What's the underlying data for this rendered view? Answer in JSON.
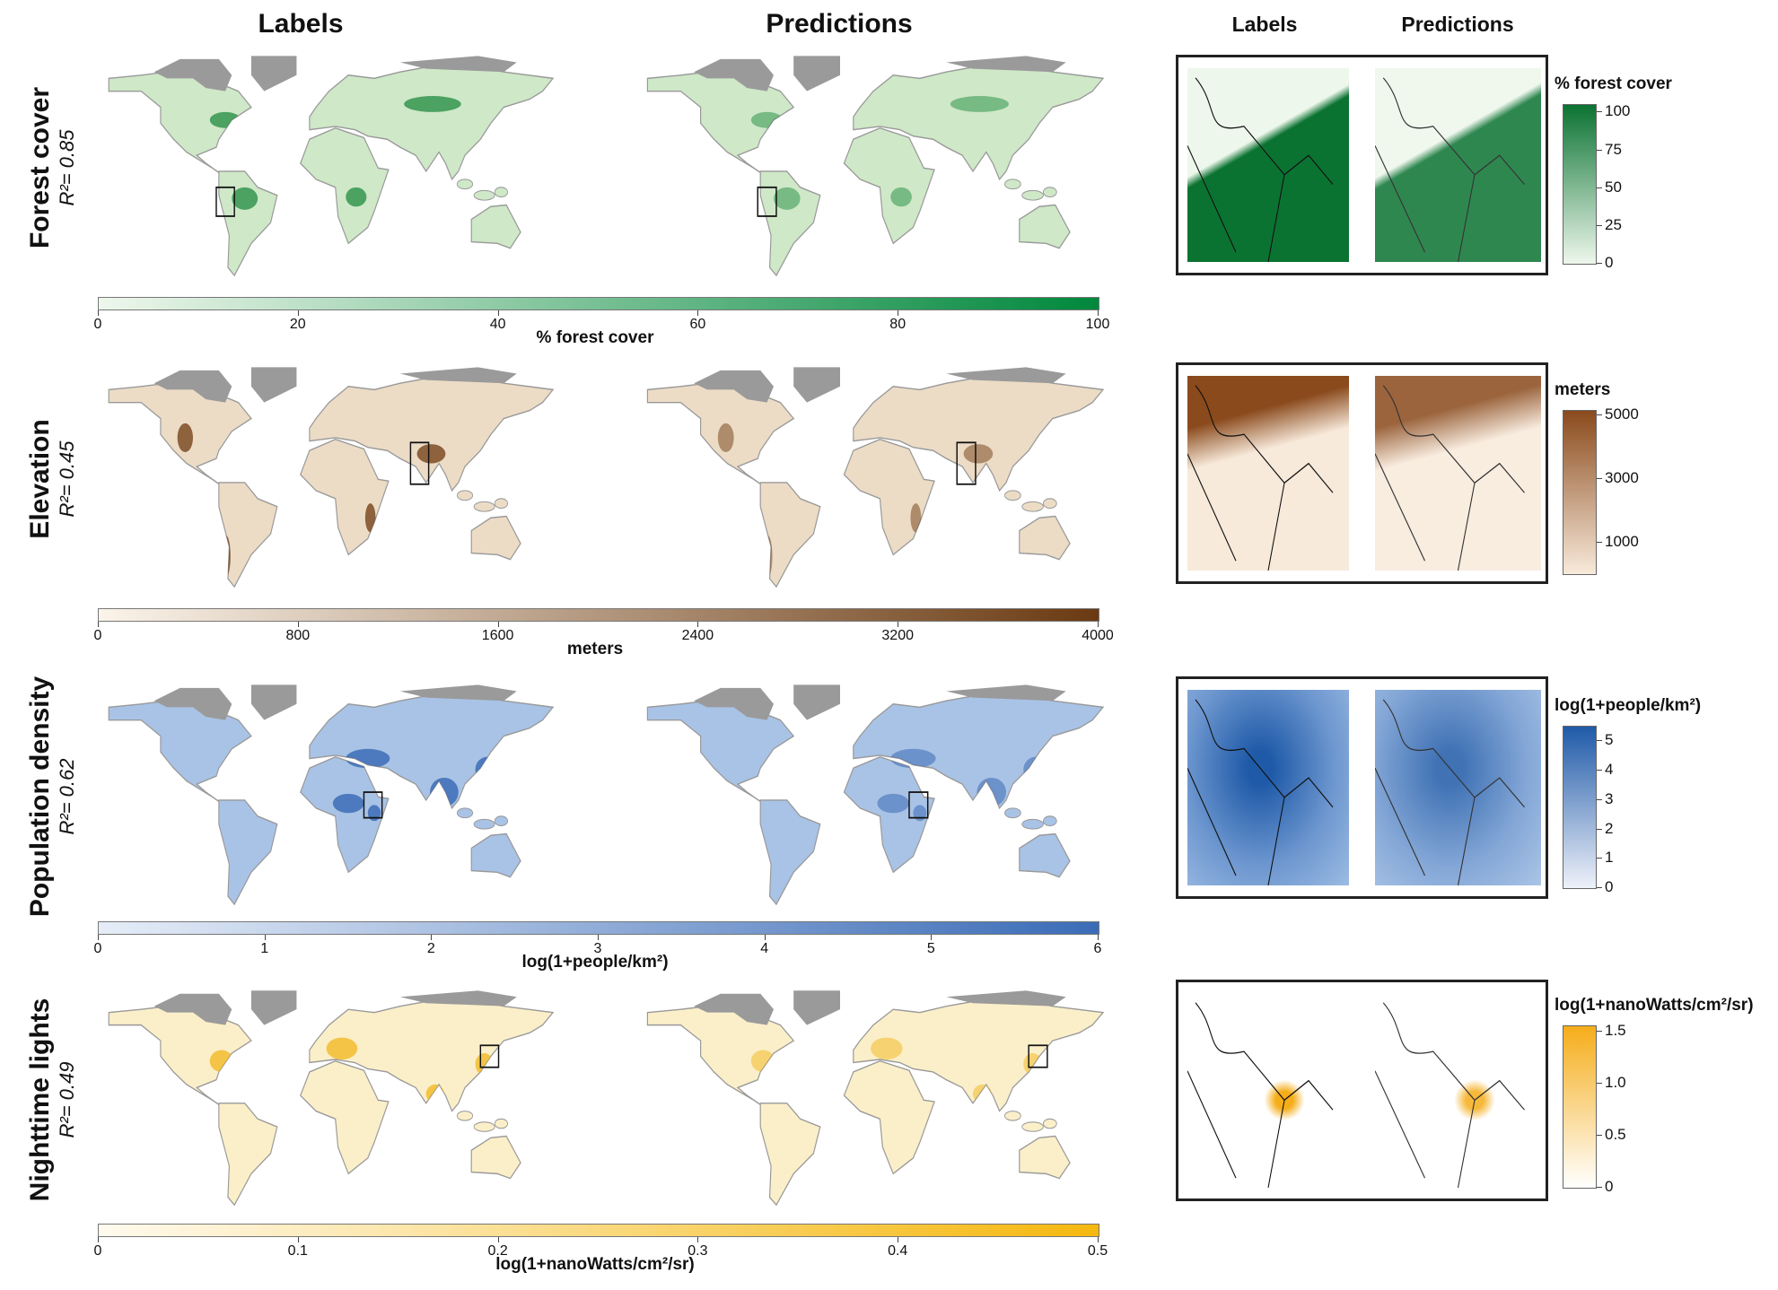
{
  "headers": {
    "labels": "Labels",
    "predictions": "Predictions",
    "inset_labels": "Labels",
    "inset_predictions": "Predictions"
  },
  "land_gray": "#9a9a9a",
  "rows": [
    {
      "name": "Forest cover",
      "r2": "R²= 0.85",
      "land_color": "#cfe8c8",
      "hot_color": "#1f8b3f",
      "colorbar": {
        "title": "% forest cover",
        "range": [
          0,
          100
        ],
        "ticks": [
          "0",
          "20",
          "40",
          "60",
          "80",
          "100"
        ],
        "colors": [
          "#eef7ec",
          "#00883c"
        ]
      },
      "inset": {
        "title": "% forest cover",
        "range": [
          0,
          105
        ],
        "ticks": [
          "100",
          "75",
          "50",
          "25",
          "0"
        ],
        "colors": [
          "#eef7ec",
          "#0b7332"
        ]
      }
    },
    {
      "name": "Elevation",
      "r2": "R²= 0.45",
      "land_color": "#ecdcc6",
      "hot_color": "#6e3a0f",
      "colorbar": {
        "title": "meters",
        "range": [
          0,
          4000
        ],
        "ticks": [
          "0",
          "800",
          "1600",
          "2400",
          "3200",
          "4000"
        ],
        "colors": [
          "#fbf4ea",
          "#6a3a12"
        ]
      },
      "inset": {
        "title": "meters",
        "range": [
          0,
          5150
        ],
        "ticks": [
          "5000",
          "3000",
          "1000"
        ],
        "colors": [
          "#f8eadb",
          "#8a4a1c"
        ]
      }
    },
    {
      "name": "Population density",
      "r2": "R²= 0.62",
      "land_color": "#a9c3e6",
      "hot_color": "#2f62b0",
      "colorbar": {
        "title": "log(1+people/km²)",
        "range": [
          0,
          6
        ],
        "ticks": [
          "0",
          "1",
          "2",
          "3",
          "4",
          "5",
          "6"
        ],
        "colors": [
          "#e6edf8",
          "#3b6cb7"
        ]
      },
      "inset": {
        "title": "log(1+people/km²)",
        "range": [
          0,
          5.5
        ],
        "ticks": [
          "5",
          "4",
          "3",
          "2",
          "1",
          "0"
        ],
        "colors": [
          "#eef1f9",
          "#1f5aa8"
        ]
      }
    },
    {
      "name": "Nighttime lights",
      "r2": "R²= 0.49",
      "land_color": "#fbefc9",
      "hot_color": "#f2b51a",
      "colorbar": {
        "title": "log(1+nanoWatts/cm²/sr)",
        "range": [
          0,
          0.5
        ],
        "ticks": [
          "0",
          "0.1",
          "0.2",
          "0.3",
          "0.4",
          "0.5"
        ],
        "colors": [
          "#fffaee",
          "#f5b80f"
        ]
      },
      "inset": {
        "title": "log(1+nanoWatts/cm²/sr)",
        "range": [
          0,
          1.55
        ],
        "ticks": [
          "1.5",
          "1.0",
          "0.5",
          "0"
        ],
        "colors": [
          "#ffffff",
          "#f5ad1a"
        ]
      }
    }
  ]
}
